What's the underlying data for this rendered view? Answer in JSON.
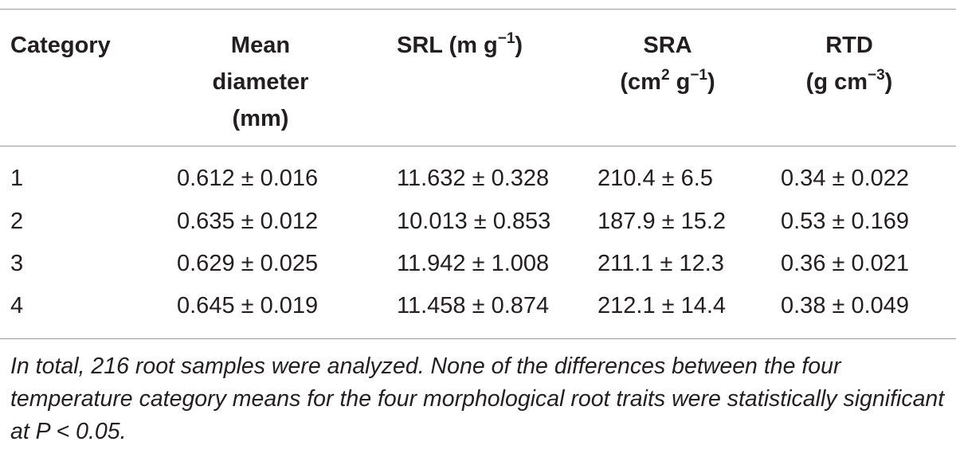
{
  "table": {
    "headers": {
      "category": "Category",
      "mean_diameter": [
        "Mean",
        "diameter",
        "(mm)"
      ],
      "srl": {
        "pre": "SRL (m g",
        "sup": "−1",
        "post": ")"
      },
      "sra": {
        "line1": "SRA",
        "pre": "(cm",
        "sup1": "2",
        "mid": " g",
        "sup2": "−1",
        "post": ")"
      },
      "rtd": {
        "line1": "RTD",
        "pre": "(g cm",
        "sup": "−3",
        "post": ")"
      }
    },
    "rows": [
      {
        "category": "1",
        "mean_diameter": "0.612 ± 0.016",
        "srl": "11.632 ± 0.328",
        "sra": "210.4 ± 6.5",
        "rtd": "0.34 ± 0.022"
      },
      {
        "category": "2",
        "mean_diameter": "0.635 ± 0.012",
        "srl": "10.013 ± 0.853",
        "sra": "187.9 ± 15.2",
        "rtd": "0.53 ± 0.169"
      },
      {
        "category": "3",
        "mean_diameter": "0.629 ± 0.025",
        "srl": "11.942 ± 1.008",
        "sra": "211.1 ± 12.3",
        "rtd": "0.36 ± 0.021"
      },
      {
        "category": "4",
        "mean_diameter": "0.645 ± 0.019",
        "srl": "11.458 ± 0.874",
        "sra": "212.1 ± 14.4",
        "rtd": "0.38 ± 0.049"
      }
    ],
    "footnote": "In total, 216 root samples were analyzed. None of the differences between the four temperature category means for the four morphological root traits were statistically significant at P < 0.05."
  }
}
